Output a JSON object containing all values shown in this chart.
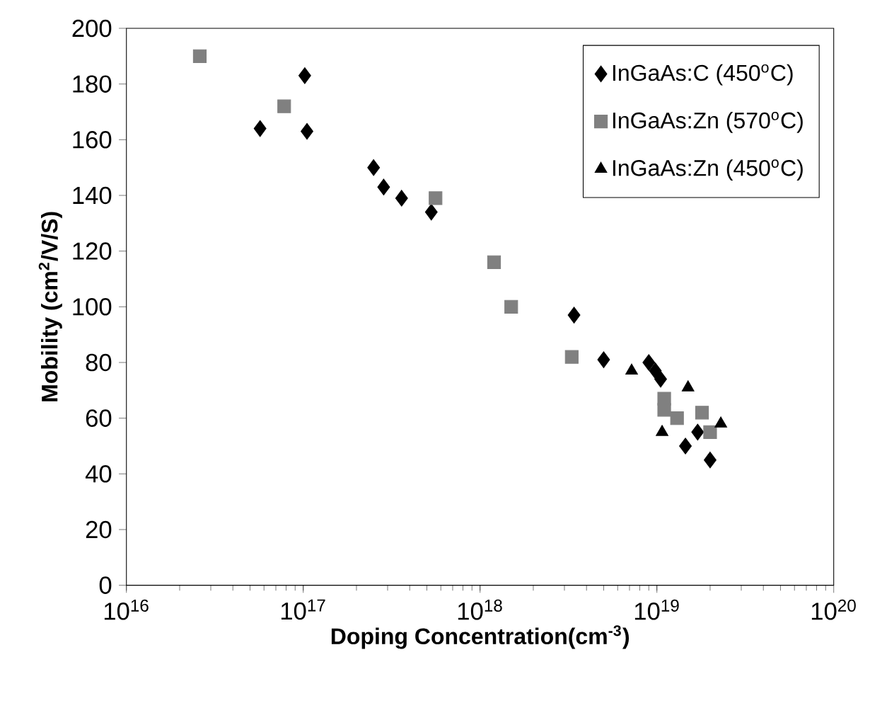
{
  "chart_data": {
    "type": "scatter",
    "xlabel": "Doping Concentration(cm$^{-3}$)",
    "ylabel": "Mobility (cm$^{2}$/V/S)",
    "log": "x",
    "legend": "top right",
    "xlim": [
      1e+16,
      1e+20
    ],
    "ylim": [
      0,
      200
    ],
    "xticks": [
      {
        "value": 1e+16,
        "label": "10$^{16}$"
      },
      {
        "value": 1e+17,
        "label": "10$^{17}$"
      },
      {
        "value": 1e+18,
        "label": "10$^{18}$"
      },
      {
        "value": 1e+19,
        "label": "10$^{19}$"
      },
      {
        "value": 1e+20,
        "label": "10$^{20}$"
      }
    ],
    "yticks": [
      0,
      20,
      40,
      60,
      80,
      100,
      120,
      140,
      160,
      180,
      200
    ],
    "series": [
      {
        "name": "InGaAs:C (450$^{o}$C)",
        "color": "#000000",
        "marker": "diamond",
        "x": [
          5.7e+16,
          1.02e+17,
          1.05e+17,
          2.5e+17,
          2.85e+17,
          3.6e+17,
          5.3e+17,
          3.4e+18,
          5e+18,
          9e+18,
          9.8e+18,
          1.05e+19,
          1.45e+19,
          1.7e+19,
          2e+19
        ],
        "values": [
          164,
          183,
          163,
          150,
          143,
          139,
          134,
          97,
          81,
          80,
          77,
          74,
          50,
          55,
          45
        ]
      },
      {
        "name": "InGaAs:Zn (570$^{o}$C)",
        "color": "#808080",
        "marker": "square",
        "x": [
          2.6e+16,
          7.8e+16,
          5.6e+17,
          1.2e+18,
          1.5e+18,
          3.3e+18,
          1.1e+19,
          1.1e+19,
          1.3e+19,
          1.8e+19,
          2e+19
        ],
        "values": [
          190,
          172,
          139,
          116,
          100,
          82,
          67,
          63,
          60,
          62,
          55
        ]
      },
      {
        "name": "InGaAs:Zn (450$^{o}$C)",
        "color": "#000000",
        "marker": "triangle",
        "x": [
          7.2e+18,
          1.07e+19,
          1.5e+19,
          2.3e+19
        ],
        "values": [
          77,
          55,
          71,
          58
        ]
      }
    ]
  }
}
